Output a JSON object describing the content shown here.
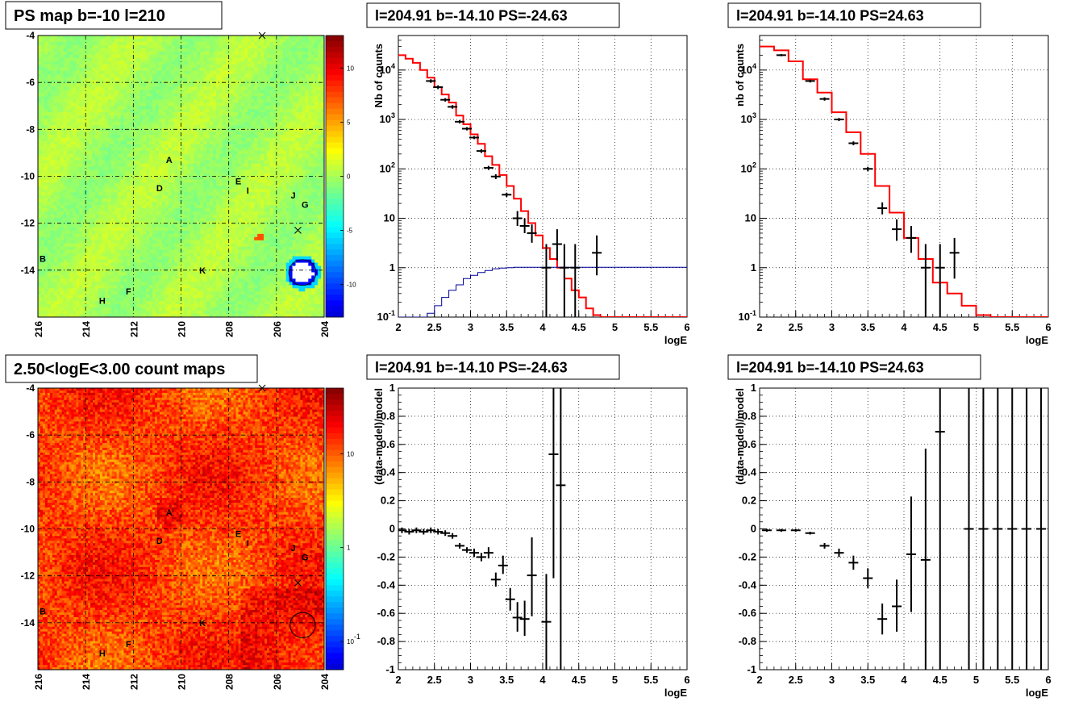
{
  "chart_data": [
    {
      "type": "heatmap",
      "title": "PS map b=-10 l=210",
      "x_ticks": [
        "216",
        "214",
        "212",
        "210",
        "208",
        "206",
        "204"
      ],
      "y_ticks": [
        "-4",
        "-6",
        "-8",
        "-10",
        "-12",
        "-14"
      ],
      "xlim": [
        216,
        204
      ],
      "ylim": [
        -16,
        -4
      ],
      "colorbar_ticks": [
        "10",
        "5",
        "0",
        "-5",
        "-10"
      ],
      "colorbar_range": [
        -13,
        13
      ],
      "source_labels": [
        {
          "text": "A",
          "l": 210.5,
          "b": -9.3
        },
        {
          "text": "D",
          "l": 210.9,
          "b": -10.5
        },
        {
          "text": "E",
          "l": 207.6,
          "b": -10.2
        },
        {
          "text": "I",
          "l": 207.2,
          "b": -10.6
        },
        {
          "text": "J",
          "l": 205.3,
          "b": -10.8
        },
        {
          "text": "G",
          "l": 204.8,
          "b": -11.2
        },
        {
          "text": "B",
          "l": 215.8,
          "b": -13.5
        },
        {
          "text": "K",
          "l": 209.1,
          "b": -14.0
        },
        {
          "text": "F",
          "l": 212.2,
          "b": -14.9
        },
        {
          "text": "H",
          "l": 213.3,
          "b": -15.3
        }
      ],
      "markers": [
        {
          "l": 206.6,
          "b": -4.0
        },
        {
          "l": 205.1,
          "b": -12.3
        }
      ]
    },
    {
      "type": "line",
      "title": "l=204.91 b=-14.10 PS=-24.63",
      "xlabel": "logE",
      "ylabel": "Nb of counts",
      "xlim": [
        2,
        6
      ],
      "ylim": [
        0.1,
        50000
      ],
      "yscale": "log",
      "x_ticks": [
        "2",
        "2.5",
        "3",
        "3.5",
        "4",
        "4.5",
        "5",
        "5.5",
        "6"
      ],
      "y_ticks": [
        "10^-1",
        "1",
        "10",
        "10^2",
        "10^3",
        "10^4"
      ],
      "series": [
        {
          "style": "step",
          "color": "#ff0000",
          "edges": [
            2.0,
            2.1,
            2.2,
            2.3,
            2.4,
            2.5,
            2.6,
            2.7,
            2.8,
            2.9,
            3.0,
            3.1,
            3.2,
            3.3,
            3.4,
            3.5,
            3.6,
            3.7,
            3.8,
            3.9,
            4.0,
            4.1,
            4.2,
            4.3,
            4.4,
            4.5,
            4.6,
            4.7,
            4.8,
            5.0,
            6.0
          ],
          "values": [
            20000,
            17000,
            14000,
            10000,
            7000,
            4500,
            3200,
            2200,
            1200,
            800,
            500,
            320,
            180,
            120,
            75,
            45,
            25,
            14,
            8,
            4.5,
            2.5,
            1.5,
            1.0,
            0.6,
            0.35,
            0.25,
            0.15,
            0.11,
            0.1,
            0.1
          ]
        },
        {
          "style": "step",
          "color": "#000099",
          "edges": [
            2.0,
            2.4,
            2.5,
            2.6,
            2.7,
            2.8,
            2.9,
            3.0,
            3.1,
            3.2,
            3.3,
            3.4,
            3.5,
            3.6,
            6.0
          ],
          "values": [
            0.1,
            0.12,
            0.17,
            0.25,
            0.35,
            0.45,
            0.6,
            0.7,
            0.8,
            0.88,
            0.95,
            0.98,
            1.0,
            1.02,
            1.02
          ]
        },
        {
          "style": "errorbar",
          "color": "#000000",
          "points": [
            [
              2.45,
              6000,
              5500,
              6500
            ],
            [
              2.55,
              4500,
              4100,
              4900
            ],
            [
              2.65,
              2500,
              2300,
              2700
            ],
            [
              2.75,
              1800,
              1650,
              1950
            ],
            [
              2.85,
              900,
              830,
              970
            ],
            [
              2.95,
              650,
              600,
              700
            ],
            [
              3.05,
              430,
              400,
              460
            ],
            [
              3.15,
              230,
              210,
              250
            ],
            [
              3.25,
              105,
              95,
              115
            ],
            [
              3.35,
              70,
              62,
              78
            ],
            [
              3.5,
              30,
              27,
              33
            ],
            [
              3.65,
              10,
              7,
              14
            ],
            [
              3.75,
              7,
              5,
              10
            ],
            [
              3.85,
              5,
              3.2,
              7.5
            ],
            [
              4.05,
              1,
              0.1,
              3
            ],
            [
              4.2,
              3,
              1.4,
              6
            ],
            [
              4.3,
              1,
              0.1,
              3
            ],
            [
              4.45,
              1,
              0.1,
              3
            ],
            [
              4.75,
              2,
              0.7,
              4.5
            ]
          ]
        }
      ]
    },
    {
      "type": "line",
      "title": "l=204.91 b=-14.10 PS=24.63",
      "xlabel": "logE",
      "ylabel": "nb of counts",
      "xlim": [
        2,
        6
      ],
      "ylim": [
        0.1,
        50000
      ],
      "yscale": "log",
      "x_ticks": [
        "2",
        "2.5",
        "3",
        "3.5",
        "4",
        "4.5",
        "5",
        "5.5",
        "6"
      ],
      "y_ticks": [
        "10^-1",
        "1",
        "10",
        "10^2",
        "10^3",
        "10^4"
      ],
      "series": [
        {
          "style": "step",
          "color": "#ff0000",
          "edges": [
            2.0,
            2.2,
            2.4,
            2.6,
            2.8,
            3.0,
            3.2,
            3.4,
            3.6,
            3.8,
            4.0,
            4.2,
            4.4,
            4.6,
            4.8,
            5.0,
            5.2,
            6.0
          ],
          "values": [
            30000,
            25000,
            15000,
            6500,
            3500,
            1400,
            550,
            200,
            45,
            13,
            4,
            1.5,
            0.5,
            0.3,
            0.17,
            0.11,
            0.1
          ]
        },
        {
          "style": "errorbar",
          "color": "#000000",
          "points": [
            [
              2.3,
              20000,
              19000,
              21000
            ],
            [
              2.7,
              6000,
              5600,
              6400
            ],
            [
              2.9,
              2600,
              2400,
              2800
            ],
            [
              3.1,
              1000,
              930,
              1070
            ],
            [
              3.3,
              330,
              300,
              360
            ],
            [
              3.5,
              100,
              90,
              110
            ],
            [
              3.7,
              16,
              12,
              21
            ],
            [
              3.9,
              6,
              3.5,
              9.5
            ],
            [
              4.1,
              4,
              2,
              7
            ],
            [
              4.3,
              1,
              0.1,
              3
            ],
            [
              4.5,
              1,
              0.1,
              3
            ],
            [
              4.7,
              2,
              0.6,
              4
            ]
          ]
        }
      ]
    },
    {
      "type": "heatmap",
      "title": "2.50<logE<3.00 count maps",
      "x_ticks": [
        "216",
        "214",
        "212",
        "210",
        "208",
        "206",
        "204"
      ],
      "y_ticks": [
        "-4",
        "-6",
        "-8",
        "-10",
        "-12",
        "-14"
      ],
      "xlim": [
        216,
        204
      ],
      "ylim": [
        -16,
        -4
      ],
      "colorbar_ticks": [
        "10",
        "1",
        "10^-1"
      ],
      "colorbar_range": [
        0.05,
        50
      ],
      "circle": {
        "l": 204.9,
        "b": -14.1,
        "r": 1.0
      },
      "source_labels": [
        {
          "text": "A",
          "l": 210.5,
          "b": -9.3
        },
        {
          "text": "D",
          "l": 210.9,
          "b": -10.5
        },
        {
          "text": "E",
          "l": 207.6,
          "b": -10.2
        },
        {
          "text": "I",
          "l": 207.2,
          "b": -10.6
        },
        {
          "text": "J",
          "l": 205.3,
          "b": -10.8
        },
        {
          "text": "G",
          "l": 204.8,
          "b": -11.2
        },
        {
          "text": "B",
          "l": 215.8,
          "b": -13.5
        },
        {
          "text": "K",
          "l": 209.1,
          "b": -14.0
        },
        {
          "text": "F",
          "l": 212.2,
          "b": -14.9
        },
        {
          "text": "H",
          "l": 213.3,
          "b": -15.3
        }
      ],
      "markers": [
        {
          "l": 206.6,
          "b": -4.0
        },
        {
          "l": 205.1,
          "b": -12.3
        }
      ]
    },
    {
      "type": "scatter",
      "title": "l=204.91 b=-14.10 PS=-24.63",
      "xlabel": "logE",
      "ylabel": "(data-model)/model",
      "xlim": [
        2,
        6
      ],
      "ylim": [
        -1,
        1
      ],
      "x_ticks": [
        "2",
        "2.5",
        "3",
        "3.5",
        "4",
        "4.5",
        "5",
        "5.5",
        "6"
      ],
      "y_ticks": [
        "-1",
        "-0.8",
        "-0.6",
        "-0.4",
        "-0.2",
        "0",
        "0.2",
        "0.4",
        "0.6",
        "0.8",
        "1"
      ],
      "series": [
        {
          "style": "errorbar",
          "color": "#000000",
          "points": [
            [
              2.05,
              -0.01,
              -0.03,
              0.01
            ],
            [
              2.15,
              -0.02,
              -0.04,
              0.0
            ],
            [
              2.25,
              -0.01,
              -0.03,
              0.01
            ],
            [
              2.35,
              -0.02,
              -0.04,
              0.0
            ],
            [
              2.45,
              -0.01,
              -0.03,
              0.01
            ],
            [
              2.55,
              -0.02,
              -0.04,
              0.0
            ],
            [
              2.65,
              -0.03,
              -0.05,
              -0.01
            ],
            [
              2.75,
              -0.05,
              -0.07,
              -0.03
            ],
            [
              2.85,
              -0.12,
              -0.14,
              -0.1
            ],
            [
              2.95,
              -0.15,
              -0.17,
              -0.13
            ],
            [
              3.05,
              -0.17,
              -0.2,
              -0.14
            ],
            [
              3.15,
              -0.2,
              -0.23,
              -0.17
            ],
            [
              3.25,
              -0.17,
              -0.21,
              -0.13
            ],
            [
              3.35,
              -0.36,
              -0.41,
              -0.31
            ],
            [
              3.45,
              -0.26,
              -0.32,
              -0.19
            ],
            [
              3.55,
              -0.5,
              -0.58,
              -0.42
            ],
            [
              3.65,
              -0.63,
              -0.73,
              -0.52
            ],
            [
              3.75,
              -0.64,
              -0.76,
              -0.51
            ],
            [
              3.85,
              -0.33,
              -0.62,
              -0.06
            ],
            [
              4.05,
              -0.66,
              -1.0,
              -0.32
            ],
            [
              4.15,
              0.53,
              -0.35,
              1.0
            ],
            [
              4.25,
              0.31,
              -1.0,
              1.0
            ]
          ]
        }
      ]
    },
    {
      "type": "scatter",
      "title": "l=204.91 b=-14.10 PS=24.63",
      "xlabel": "logE",
      "ylabel": "(data-model)/model",
      "xlim": [
        2,
        6
      ],
      "ylim": [
        -1,
        1
      ],
      "x_ticks": [
        "2",
        "2.5",
        "3",
        "3.5",
        "4",
        "4.5",
        "5",
        "5.5",
        "6"
      ],
      "y_ticks": [
        "-1",
        "-0.8",
        "-0.6",
        "-0.4",
        "-0.2",
        "0",
        "0.2",
        "0.4",
        "0.6",
        "0.8",
        "1"
      ],
      "series": [
        {
          "style": "errorbar",
          "color": "#000000",
          "points": [
            [
              2.1,
              -0.01,
              -0.02,
              0.0
            ],
            [
              2.3,
              -0.01,
              -0.02,
              0.0
            ],
            [
              2.5,
              -0.01,
              -0.02,
              0.0
            ],
            [
              2.7,
              -0.03,
              -0.04,
              -0.02
            ],
            [
              2.9,
              -0.12,
              -0.14,
              -0.1
            ],
            [
              3.1,
              -0.17,
              -0.2,
              -0.14
            ],
            [
              3.3,
              -0.24,
              -0.29,
              -0.19
            ],
            [
              3.5,
              -0.35,
              -0.42,
              -0.28
            ],
            [
              3.7,
              -0.64,
              -0.75,
              -0.53
            ],
            [
              3.9,
              -0.55,
              -0.73,
              -0.36
            ],
            [
              4.1,
              -0.18,
              -0.59,
              0.23
            ],
            [
              4.3,
              -0.22,
              -1.0,
              0.57
            ],
            [
              4.5,
              0.69,
              -1.0,
              1.0
            ],
            [
              4.9,
              0.0,
              -1.0,
              1.0
            ],
            [
              5.1,
              0.0,
              -1.0,
              1.0
            ],
            [
              5.3,
              0.0,
              -1.0,
              1.0
            ],
            [
              5.5,
              0.0,
              -1.0,
              1.0
            ],
            [
              5.7,
              0.0,
              -1.0,
              1.0
            ],
            [
              5.9,
              0.0,
              -1.0,
              1.0
            ]
          ]
        }
      ]
    }
  ]
}
